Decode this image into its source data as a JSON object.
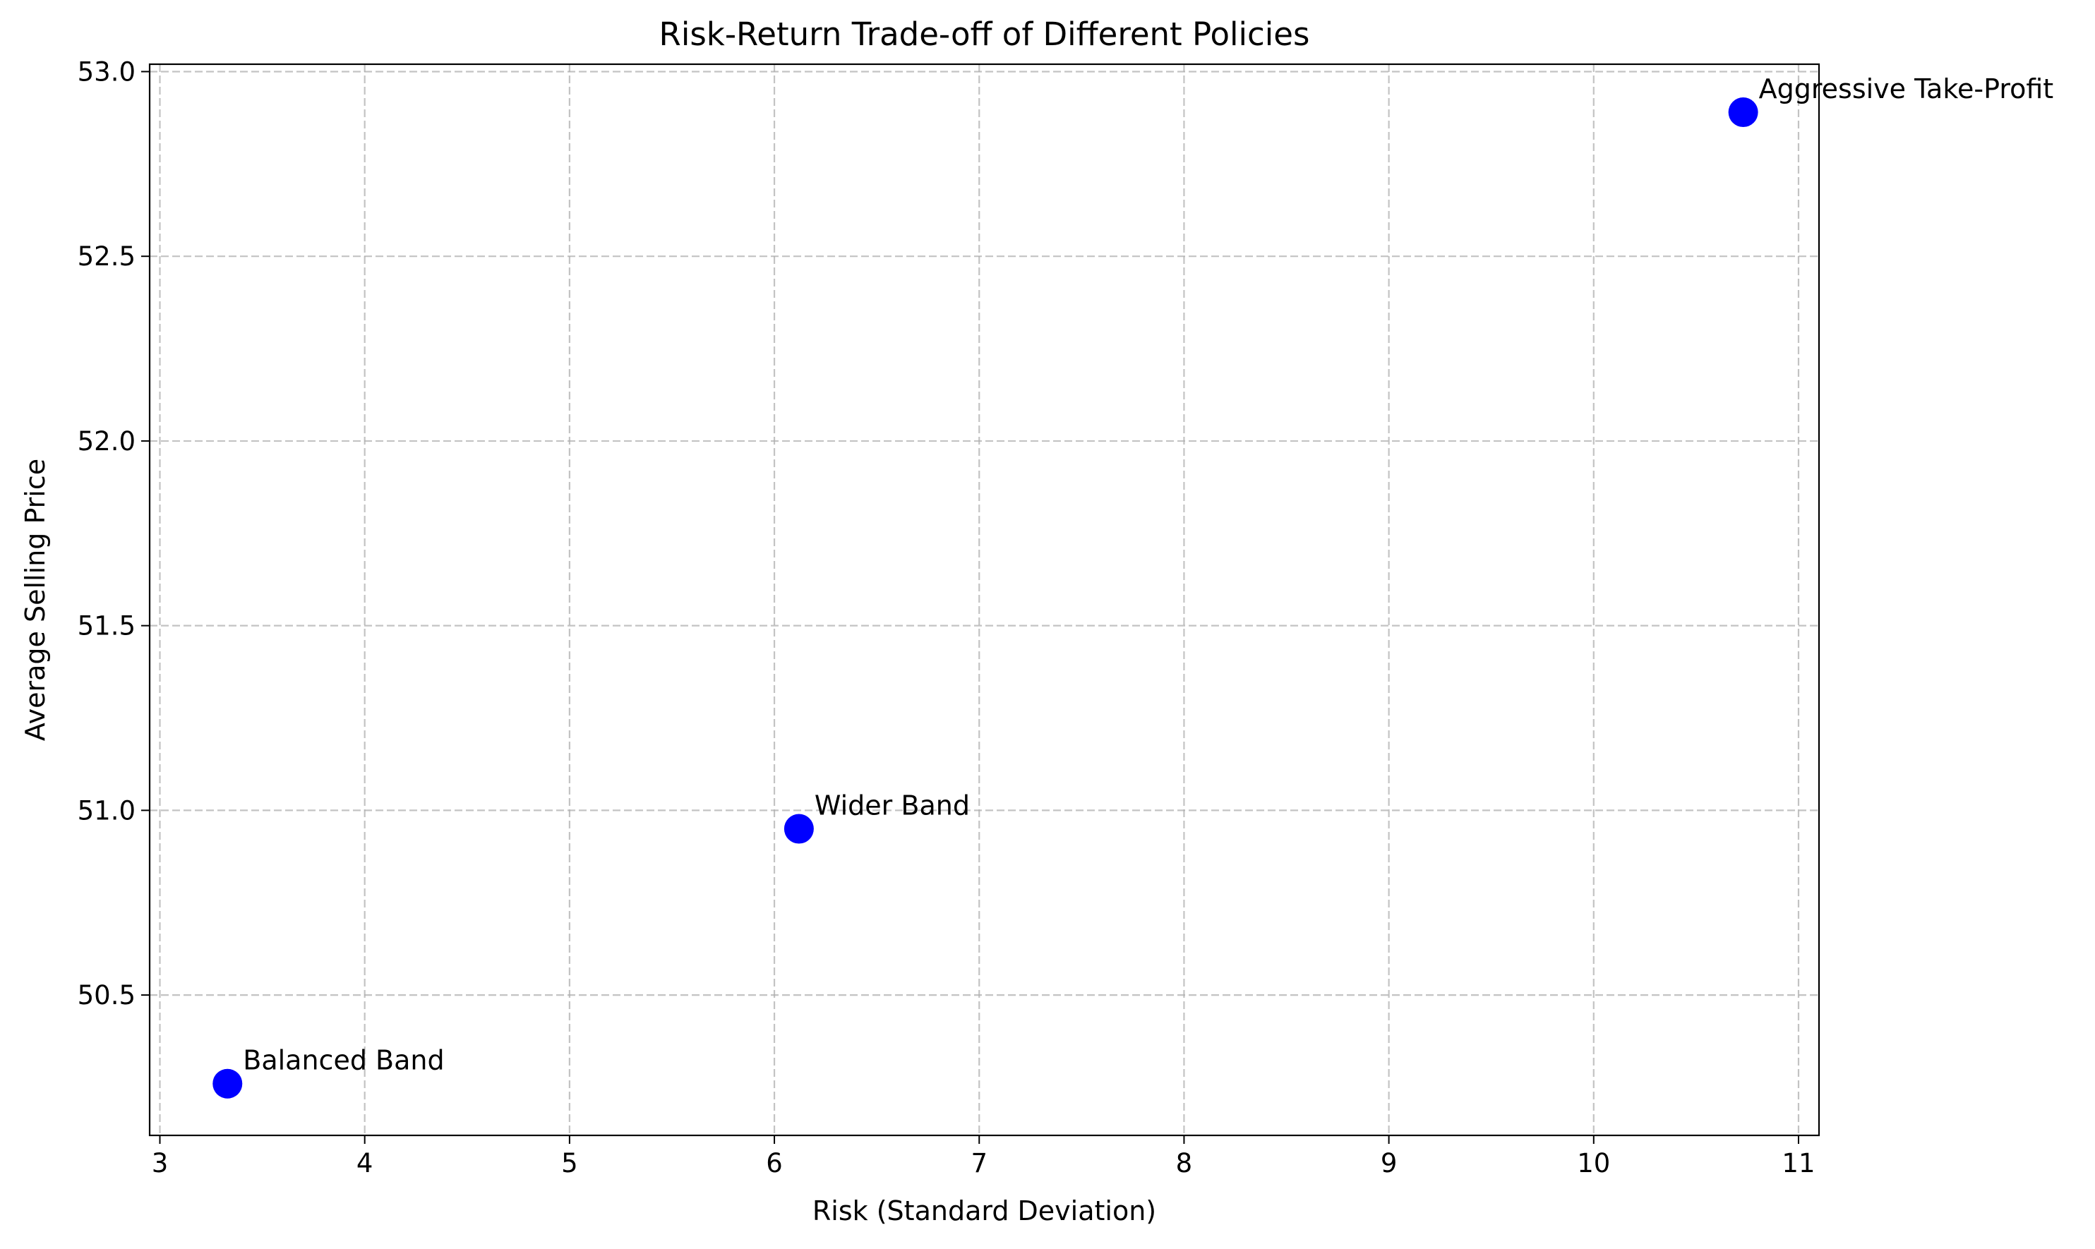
{
  "chart_data": {
    "type": "scatter",
    "title": "Risk-Return Trade-off of Different Policies",
    "xlabel": "Risk (Standard Deviation)",
    "ylabel": "Average Selling Price",
    "xlim": [
      2.95,
      11.1
    ],
    "ylim": [
      50.12,
      53.02
    ],
    "xticks": [
      3,
      4,
      5,
      6,
      7,
      8,
      9,
      10,
      11
    ],
    "yticks": [
      50.5,
      51.0,
      51.5,
      52.0,
      52.5,
      53.0
    ],
    "grid": true,
    "marker_color": "#0000ff",
    "points": [
      {
        "label": "Balanced Band",
        "x": 3.33,
        "y": 50.26
      },
      {
        "label": "Wider Band",
        "x": 6.12,
        "y": 50.95
      },
      {
        "label": "Aggressive Take-Profit",
        "x": 10.73,
        "y": 52.89
      }
    ]
  }
}
